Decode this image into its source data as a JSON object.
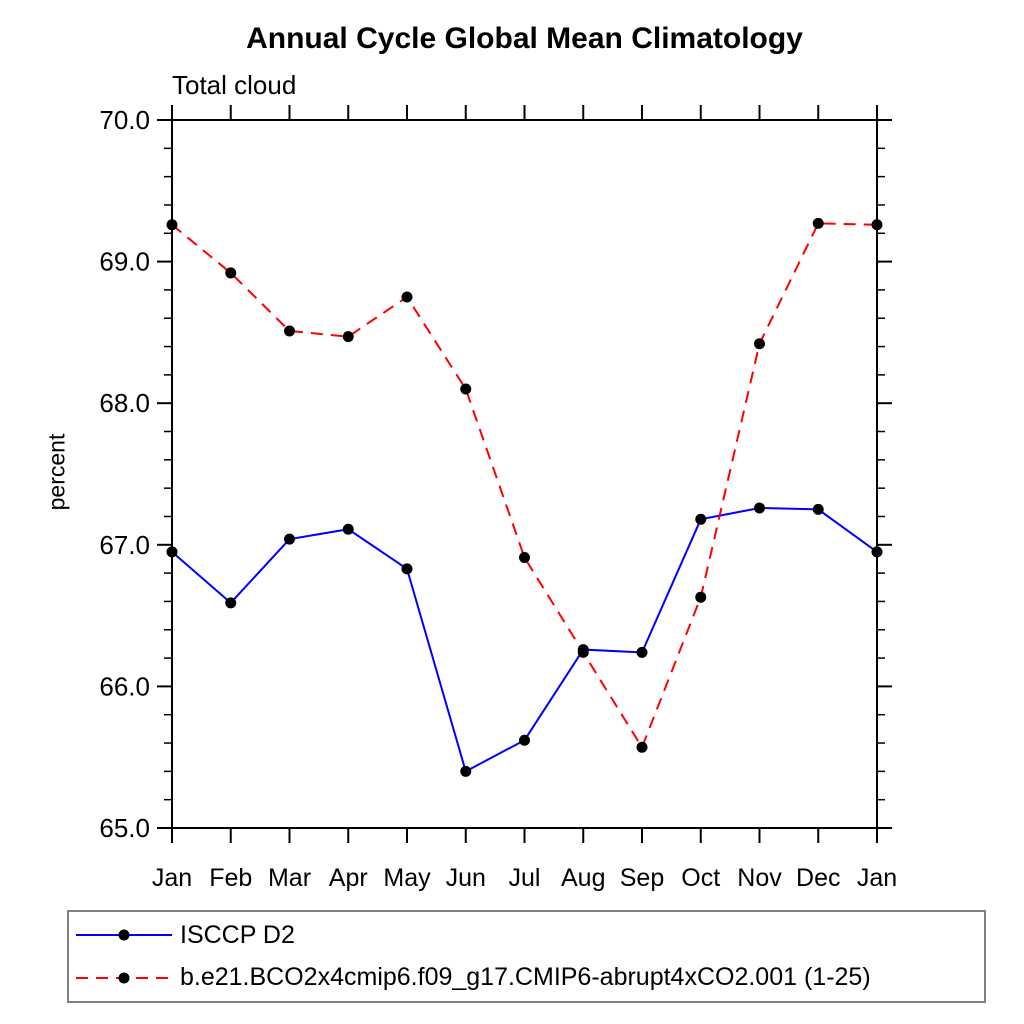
{
  "title": "Annual Cycle Global Mean Climatology",
  "subtitle": "Total cloud",
  "ylabel": "percent",
  "colors": {
    "series1": "#0000ff",
    "series2": "#ff0000",
    "marker": "#000000",
    "axis": "#000000",
    "legend_border": "#808080"
  },
  "chart_data": {
    "type": "line",
    "title": "Annual Cycle Global Mean Climatology",
    "subtitle": "Total cloud",
    "xlabel": "",
    "ylabel": "percent",
    "categories": [
      "Jan",
      "Feb",
      "Mar",
      "Apr",
      "May",
      "Jun",
      "Jul",
      "Aug",
      "Sep",
      "Oct",
      "Nov",
      "Dec",
      "Jan"
    ],
    "ylim": [
      65.0,
      70.0
    ],
    "y_tick_labels": [
      "65.0",
      "66.0",
      "67.0",
      "68.0",
      "69.0",
      "70.0"
    ],
    "y_major_ticks": [
      65.0,
      66.0,
      67.0,
      68.0,
      69.0,
      70.0
    ],
    "y_minor_step": 0.2,
    "grid": false,
    "legend_position": "bottom-left-box",
    "marker": "filled-circle",
    "marker_color": "#000000",
    "series": [
      {
        "name": "ISCCP D2",
        "color": "#0000ff",
        "dash": "solid",
        "values": [
          66.95,
          66.59,
          67.04,
          67.11,
          66.83,
          65.4,
          65.62,
          66.26,
          66.24,
          67.18,
          67.26,
          67.25,
          66.95
        ]
      },
      {
        "name": "b.e21.BCO2x4cmip6.f09_g17.CMIP6-abrupt4xCO2.001 (1-25)",
        "color": "#ff0000",
        "dash": "dashed",
        "values": [
          69.26,
          68.92,
          68.51,
          68.47,
          68.75,
          68.1,
          66.91,
          66.24,
          65.57,
          66.63,
          68.42,
          69.27,
          69.26
        ]
      }
    ]
  }
}
